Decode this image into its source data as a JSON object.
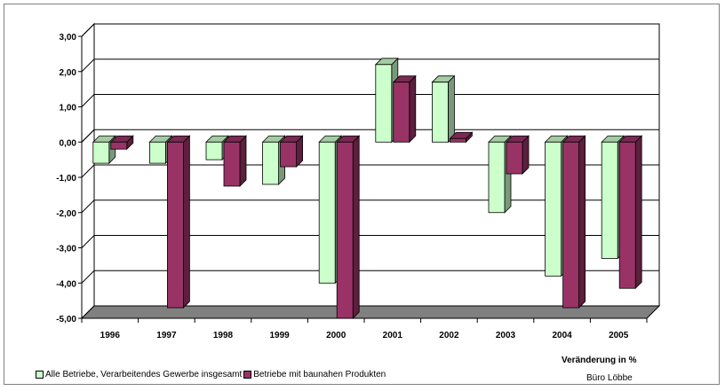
{
  "chart_data": {
    "type": "bar",
    "subtype": "3d-clustered-column",
    "categories": [
      "1996",
      "1997",
      "1998",
      "1999",
      "2000",
      "2001",
      "2002",
      "2003",
      "2004",
      "2005"
    ],
    "series": [
      {
        "name": "Alle Betriebe, Verarbeitendes Gewerbe insgesamt",
        "color": "#ccffcc",
        "values": [
          -0.6,
          -0.6,
          -0.5,
          -1.2,
          -4.0,
          2.2,
          1.7,
          -2.0,
          -3.8,
          -3.3
        ]
      },
      {
        "name": "Betriebe mit baunahen Produkten",
        "color": "#993366",
        "values": [
          -0.2,
          -4.7,
          -1.25,
          -0.7,
          -5.0,
          1.7,
          0.1,
          -0.9,
          -4.7,
          -4.15
        ]
      }
    ],
    "yticks": [
      "3,00",
      "2,00",
      "1,00",
      "0,00",
      "-1,00",
      "-2,00",
      "-3,00",
      "-4,00",
      "-5,00"
    ],
    "ylim": [
      -5,
      3
    ],
    "xlabel": "Veränderung in %",
    "grid": true,
    "legend": "bottom-left"
  },
  "note": "Büro Löbbe"
}
